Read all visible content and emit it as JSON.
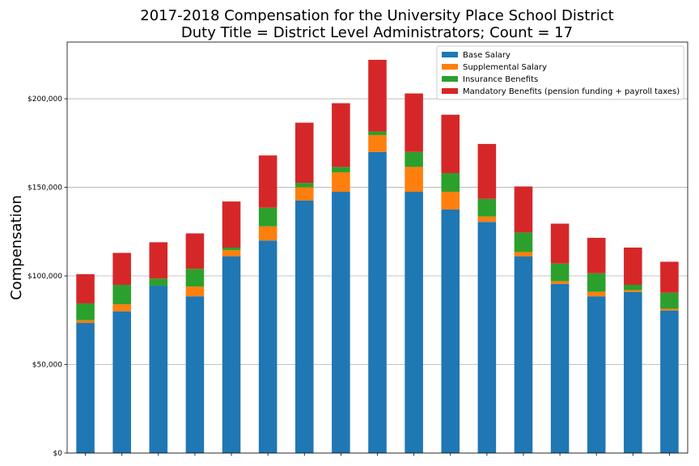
{
  "chart_data": {
    "type": "bar",
    "stacked": true,
    "title_line1": "2017-2018 Compensation for the University Place School District",
    "title_line2": "Duty Title = District Level Administrators; Count = 17",
    "xlabel": "",
    "ylabel": "Compensation",
    "ylim": [
      0,
      232000
    ],
    "yticks": [
      0,
      50000,
      100000,
      150000,
      200000
    ],
    "ytick_labels": [
      "$0",
      "$50,000",
      "$100,000",
      "$150,000",
      "$200,000"
    ],
    "grid": "horizontal",
    "legend_position": "top-right",
    "categories": [
      "",
      "",
      "",
      "",
      "",
      "",
      "",
      "",
      "",
      "",
      "",
      "",
      "",
      "",
      "",
      "",
      ""
    ],
    "series": [
      {
        "name": "Base Salary",
        "color": "#1f77b4",
        "values": [
          73500,
          80000,
          94500,
          88500,
          111000,
          120000,
          142500,
          147500,
          170000,
          147500,
          137500,
          130500,
          111000,
          95500,
          88500,
          91000,
          80500
        ]
      },
      {
        "name": "Supplemental Salary",
        "color": "#ff7f0e",
        "values": [
          1500,
          4000,
          0,
          5500,
          3500,
          8000,
          7500,
          11000,
          9500,
          14000,
          10000,
          3000,
          2500,
          1500,
          2500,
          1000,
          1000
        ]
      },
      {
        "name": "Insurance Benefits",
        "color": "#2ca02c",
        "values": [
          9500,
          11000,
          4000,
          10000,
          1500,
          10500,
          2500,
          3000,
          2000,
          8500,
          10500,
          10000,
          11000,
          10000,
          10500,
          3000,
          9000
        ]
      },
      {
        "name": "Mandatory Benefits (pension funding + payroll taxes)",
        "color": "#d62728",
        "values": [
          16500,
          18000,
          20500,
          20000,
          26000,
          29500,
          34000,
          36000,
          40500,
          33000,
          33000,
          31000,
          26000,
          22500,
          20000,
          21000,
          17500
        ]
      }
    ]
  }
}
